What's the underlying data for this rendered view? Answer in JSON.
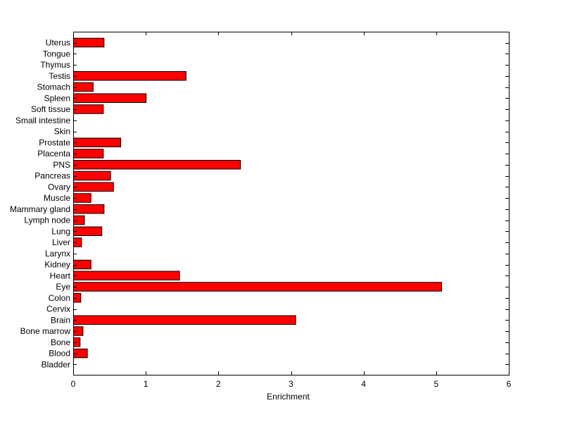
{
  "chart_data": {
    "type": "bar",
    "orientation": "horizontal",
    "title": "",
    "xlabel": "Enrichment",
    "ylabel": "",
    "xlim": [
      0,
      6
    ],
    "xticks": [
      0,
      1,
      2,
      3,
      4,
      5,
      6
    ],
    "grid": false,
    "legend": "none",
    "bar_color": "#ff0000",
    "categories": [
      "Uterus",
      "Tongue",
      "Thymus",
      "Testis",
      "Stomach",
      "Spleen",
      "Soft tissue",
      "Small intestine",
      "Skin",
      "Prostate",
      "Placenta",
      "PNS",
      "Pancreas",
      "Ovary",
      "Muscle",
      "Mammary gland",
      "Lymph node",
      "Lung",
      "Liver",
      "Larynx",
      "Kidney",
      "Heart",
      "Eye",
      "Colon",
      "Cervix",
      "Brain",
      "Bone marrow",
      "Bone",
      "Blood",
      "Bladder"
    ],
    "values": [
      0.42,
      0,
      0,
      1.55,
      0.27,
      1.0,
      0.41,
      0,
      0,
      0.65,
      0.41,
      2.3,
      0.51,
      0.55,
      0.24,
      0.42,
      0.15,
      0.39,
      0.11,
      0,
      0.24,
      1.46,
      5.07,
      0.1,
      0,
      3.06,
      0.13,
      0.09,
      0.19,
      0
    ]
  }
}
